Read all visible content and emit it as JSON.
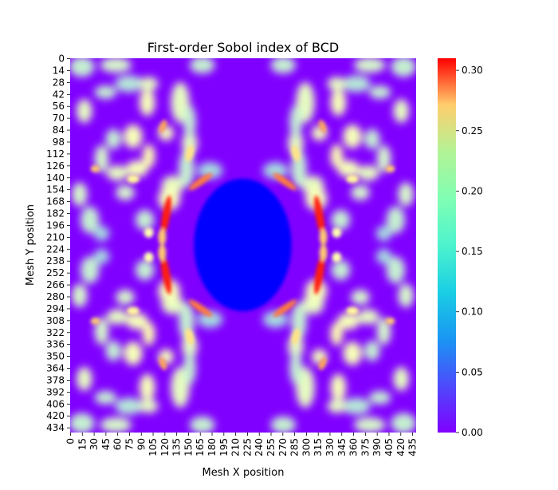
{
  "chart_data": {
    "type": "heatmap",
    "title": "First-order Sobol index of BCD",
    "xlabel": "Mesh X position",
    "ylabel": "Mesh Y position",
    "x_ticks": [
      0,
      15,
      30,
      45,
      60,
      75,
      90,
      105,
      120,
      135,
      150,
      165,
      180,
      195,
      210,
      225,
      240,
      255,
      270,
      285,
      300,
      315,
      330,
      345,
      360,
      375,
      390,
      405,
      420,
      435
    ],
    "y_ticks": [
      0,
      14,
      28,
      42,
      56,
      70,
      84,
      98,
      112,
      126,
      140,
      154,
      168,
      182,
      196,
      210,
      224,
      238,
      252,
      266,
      280,
      294,
      308,
      322,
      336,
      350,
      364,
      378,
      392,
      406,
      420,
      434
    ],
    "x_range": [
      0,
      440
    ],
    "y_range": [
      0,
      440
    ],
    "colorbar": {
      "colormap": "rainbow",
      "vmin": 0.0,
      "vmax": 0.31,
      "ticks": [
        "0.00",
        "0.05",
        "0.10",
        "0.15",
        "0.20",
        "0.25",
        "0.30"
      ],
      "tick_values": [
        0.0,
        0.05,
        0.1,
        0.15,
        0.2,
        0.25,
        0.3
      ]
    },
    "symmetry": "mirror symmetric about the vertical and horizontal center lines",
    "background_value": 0.0,
    "features": [
      {
        "x": 120,
        "y": 180,
        "value": 0.3
      },
      {
        "x": 118,
        "y": 262,
        "value": 0.3
      },
      {
        "x": 108,
        "y": 232,
        "value": 0.26
      },
      {
        "x": 112,
        "y": 205,
        "value": 0.22
      },
      {
        "x": 165,
        "y": 145,
        "value": 0.26
      },
      {
        "x": 163,
        "y": 320,
        "value": 0.26
      },
      {
        "x": 115,
        "y": 78,
        "value": 0.24
      },
      {
        "x": 116,
        "y": 380,
        "value": 0.24
      },
      {
        "x": 32,
        "y": 132,
        "value": 0.22
      },
      {
        "x": 28,
        "y": 322,
        "value": 0.22
      },
      {
        "x": 30,
        "y": 388,
        "value": 0.22
      }
    ]
  }
}
